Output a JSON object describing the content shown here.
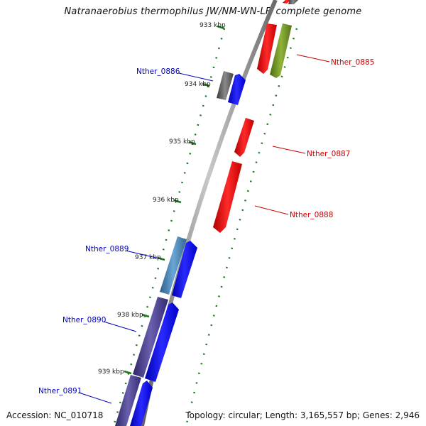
{
  "title": "Natranaerobius thermophilus JW/NM-WN-LF, complete genome",
  "accession": "Accession: NC_010718",
  "topology": "Topology: circular; Length: 3,165,557 bp; Genes: 2,946",
  "ticks": [
    "933 kbp",
    "934 kbp",
    "935 kbp",
    "936 kbp",
    "937 kbp",
    "938 kbp",
    "939 kbp"
  ],
  "genes_plus": [
    "Nther_0885",
    "Nther_0887",
    "Nther_0888"
  ],
  "genes_minus": [
    "Nther_0886",
    "Nther_0889",
    "Nther_0890",
    "Nther_0891"
  ],
  "colors": {
    "plus_strand_label": "#cc0000",
    "minus_strand_label": "#0000bb",
    "red_gene": "#ff0000",
    "blue_gene": "#0000ff",
    "olive_gene": "#6b8e23",
    "dark_gray_gene": "#555555",
    "steelblue_gene": "#4682b4",
    "darkslateblue_gene": "#483d8b",
    "tick_green": "#1f7a1f",
    "backbone": "#808080"
  }
}
